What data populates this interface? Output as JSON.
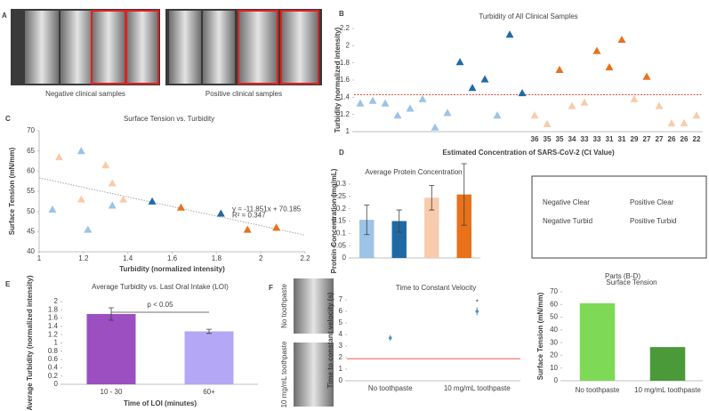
{
  "panel_labels": [
    "A",
    "B",
    "C",
    "D",
    "E",
    "F"
  ],
  "photo_captions": {
    "negative": "Negative clinical samples",
    "positive": "Positive clinical samples",
    "no_toothpaste": "No toothpaste",
    "toothpaste": "10 mg/mL toothpaste"
  },
  "legend": {
    "title": "Parts (B-D)",
    "items": [
      {
        "name": "Negative Clear",
        "color": "#9dc3e6"
      },
      {
        "name": "Negative Turbid",
        "color": "#1f6aa5"
      },
      {
        "name": "Positive Clear",
        "color": "#f8cbad"
      },
      {
        "name": "Positive Turbid",
        "color": "#e8711a"
      }
    ]
  },
  "chart_data": [
    {
      "type": "scatter",
      "title": "Turbidity of All Clinical Samples",
      "x_label": "Estimated Concentration of SARS-CoV-2 (Ct Value)",
      "y_label": "Turbidity (normalized intensity)",
      "categories": [
        null,
        null,
        null,
        null,
        null,
        null,
        null,
        null,
        null,
        null,
        null,
        null,
        null,
        null,
        "36",
        "35",
        "35",
        "34",
        "33",
        "33",
        "31",
        "31",
        "29",
        "27",
        "27",
        "26",
        "26",
        "22"
      ],
      "series": [
        {
          "color": "#9dc3e6",
          "values": [
            1.33,
            1.36,
            1.33,
            1.19,
            1.27,
            1.38,
            1.05,
            1.22,
            null,
            null,
            null,
            1.19,
            null,
            null,
            null,
            null,
            null,
            null,
            null,
            null,
            null,
            null,
            null,
            null,
            null,
            null,
            null,
            null
          ]
        },
        {
          "color": "#1f6aa5",
          "values": [
            null,
            null,
            null,
            null,
            null,
            null,
            null,
            null,
            1.81,
            1.51,
            1.61,
            null,
            2.13,
            1.45,
            null,
            null,
            null,
            null,
            null,
            null,
            null,
            null,
            null,
            null,
            null,
            null,
            null,
            null
          ]
        },
        {
          "color": "#f8cbad",
          "values": [
            null,
            null,
            null,
            null,
            null,
            null,
            null,
            null,
            null,
            null,
            null,
            null,
            null,
            null,
            1.19,
            1.09,
            null,
            1.3,
            1.34,
            null,
            null,
            null,
            1.38,
            null,
            1.3,
            1.1,
            1.1,
            1.19
          ]
        },
        {
          "color": "#e8711a",
          "values": [
            null,
            null,
            null,
            null,
            null,
            null,
            null,
            null,
            null,
            null,
            null,
            null,
            null,
            null,
            null,
            null,
            1.72,
            null,
            null,
            1.94,
            1.75,
            2.07,
            null,
            1.64,
            null,
            null,
            null,
            null
          ]
        }
      ],
      "reference_line": {
        "value": 1.43,
        "color": "#e03c31"
      },
      "ylim": [
        1,
        2.2
      ],
      "yticks": [
        1,
        1.2,
        1.4,
        1.6,
        1.8,
        2,
        2.2
      ]
    },
    {
      "type": "scatter",
      "title": "Surface Tension vs. Turbidity",
      "x_label": "Turbidity (normalized intensity)",
      "y_label": "Surface Tension (mN/mm)",
      "series": [
        {
          "color": "#9dc3e6",
          "x": [
            1.06,
            1.19,
            1.22,
            1.33
          ],
          "values": [
            50.5,
            65,
            45.5,
            51.5
          ]
        },
        {
          "color": "#1f6aa5",
          "x": [
            1.51,
            1.82
          ],
          "values": [
            52.5,
            49.5
          ]
        },
        {
          "color": "#f8cbad",
          "x": [
            1.09,
            1.19,
            1.3,
            1.33,
            1.38
          ],
          "values": [
            63.5,
            53,
            61.5,
            57,
            53
          ]
        },
        {
          "color": "#e8711a",
          "x": [
            1.64,
            1.94,
            2.07
          ],
          "values": [
            51,
            45.5,
            46
          ]
        }
      ],
      "trendline": {
        "slope": -11.851,
        "intercept": 70.185,
        "equation": "y = -11.851x + 70.185",
        "r2": "R² = 0.347"
      },
      "xlim": [
        1,
        2.2
      ],
      "xticks": [
        1,
        1.2,
        1.4,
        1.6,
        1.8,
        2,
        2.2
      ],
      "ylim": [
        40,
        70
      ],
      "yticks": [
        40,
        45,
        50,
        55,
        60,
        65,
        70
      ]
    },
    {
      "type": "bar",
      "title": "Average Protein Concentration",
      "y_label": "Protein Concentration (mg/mL)",
      "values": [
        0.155,
        0.15,
        0.245,
        0.258
      ],
      "errors": [
        0.06,
        0.045,
        0.05,
        0.125
      ],
      "colors": [
        "#9dc3e6",
        "#1f6aa5",
        "#f8cbad",
        "#e8711a"
      ],
      "ylim": [
        0,
        0.3
      ],
      "yticks": [
        0,
        0.05,
        0.1,
        0.15,
        0.2,
        0.25,
        0.3
      ]
    },
    {
      "type": "bar",
      "title": "Average Turbidity vs. Last Oral Intake (LOI)",
      "x_label": "Time of LOI (minutes)",
      "y_label": "Average Turbidity (normalized intensity)",
      "categories": [
        "10 - 30",
        "60+"
      ],
      "values": [
        1.7,
        1.28
      ],
      "errors": [
        0.15,
        0.05
      ],
      "colors": [
        "#9b4fc0",
        "#b4a7f5"
      ],
      "annotation": "p < 0.05",
      "ylim": [
        0,
        2
      ],
      "yticks": [
        0,
        0.2,
        0.4,
        0.6,
        0.8,
        1,
        1.2,
        1.4,
        1.6,
        1.8,
        2
      ]
    },
    {
      "type": "scatter",
      "title": "Time to Constant Velocity",
      "y_label": "Time to constant velocity (s)",
      "categories": [
        "No toothpaste",
        "10 mg/mL toothpaste"
      ],
      "series": [
        {
          "color": "#4a90c4",
          "values": [
            3.7,
            6.0
          ],
          "errors": [
            0.25,
            0.35
          ]
        }
      ],
      "reference_line": {
        "value": 1.9,
        "color": "#f05a50"
      },
      "annotation": "*",
      "ylim": [
        0,
        7
      ],
      "yticks": [
        0,
        1,
        2,
        3,
        4,
        5,
        6,
        7
      ]
    },
    {
      "type": "bar",
      "title": "Surface Tension",
      "y_label": "Surface Tension (mN/mm)",
      "categories": [
        "No  toothpaste",
        "10 mg/mL toothpaste"
      ],
      "values": [
        61,
        26.5
      ],
      "colors": [
        "#7ed957",
        "#4a9a3a"
      ],
      "ylim": [
        0,
        70
      ],
      "yticks": [
        0,
        10,
        20,
        30,
        40,
        50,
        60,
        70
      ]
    }
  ]
}
